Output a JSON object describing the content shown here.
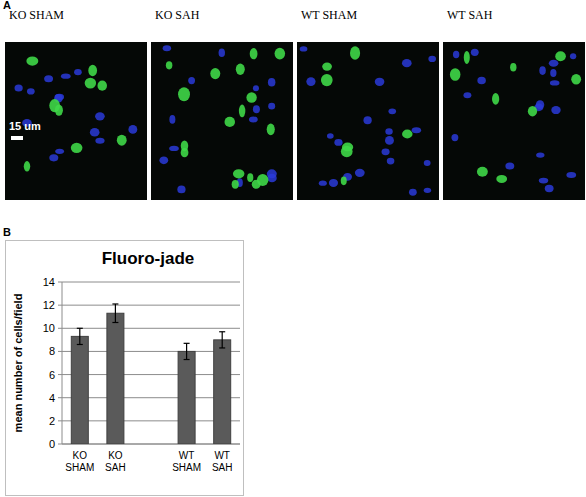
{
  "panel_a": {
    "label": "A",
    "images": [
      "KO SHAM",
      "KO SAH",
      "WT SHAM",
      "WT SAH"
    ],
    "scale_bar": "15 um"
  },
  "panel_b": {
    "label": "B"
  },
  "chart_data": {
    "type": "bar",
    "title": "Fluoro-jade",
    "y_label": "mean number of cells/field",
    "categories": [
      "KO SHAM",
      "KO SAH",
      null,
      "WT SHAM",
      "WT SAH"
    ],
    "values": [
      9.3,
      11.3,
      null,
      8.0,
      9.0
    ],
    "errors": [
      0.7,
      0.8,
      null,
      0.7,
      0.7
    ],
    "color": "#5a5a5a",
    "ylim": [
      0,
      14
    ],
    "yticks": [
      0,
      2,
      4,
      6,
      8,
      10,
      12,
      14
    ],
    "grid": true
  }
}
